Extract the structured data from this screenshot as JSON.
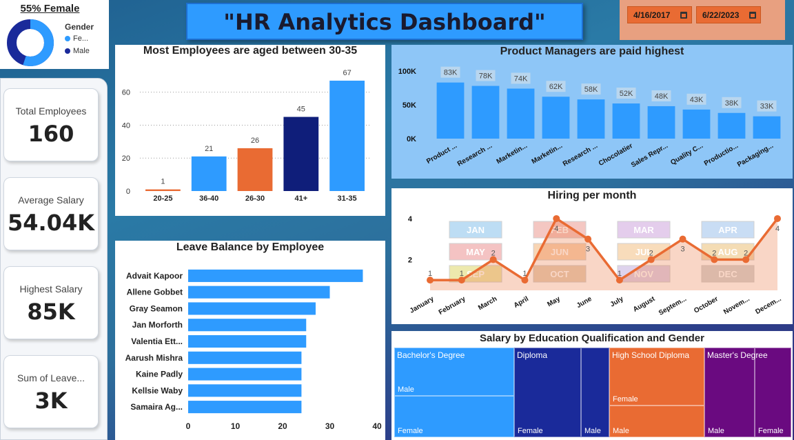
{
  "header": {
    "title": "\"HR Analytics Dashboard\""
  },
  "date_filter": {
    "start": "4/16/2017",
    "end": "6/22/2023"
  },
  "gender_card": {
    "title": "55% Female",
    "legend_title": "Gender",
    "female_label": "Fe...",
    "male_label": "Male",
    "female_share": 0.55,
    "female_color": "#2e9bff",
    "male_color": "#1a2a9a"
  },
  "kpis": [
    {
      "label": "Total Employees",
      "value": "160"
    },
    {
      "label": "Average Salary",
      "value": "54.04K"
    },
    {
      "label": "Highest Salary",
      "value": "85K"
    },
    {
      "label": "Sum of Leave...",
      "value": "3K"
    }
  ],
  "chart_data": [
    {
      "id": "age",
      "type": "bar",
      "title": "Most Employees are aged between 30-35",
      "categories": [
        "20-25",
        "36-40",
        "26-30",
        "41+",
        "31-35"
      ],
      "values": [
        1,
        21,
        26,
        45,
        67
      ],
      "colors": [
        "#e96b33",
        "#2e9bff",
        "#e96b33",
        "#0f1e7a",
        "#2e9bff"
      ],
      "ylim": [
        0,
        72
      ],
      "yticks": [
        0,
        20,
        40,
        60
      ],
      "grid": true
    },
    {
      "id": "salary_job",
      "type": "bar",
      "title": "Product Managers are paid highest",
      "categories": [
        "Product ...",
        "Research ...",
        "Marketin...",
        "Marketin...",
        "Research ...",
        "Chocolatier",
        "Sales Repr...",
        "Quality C...",
        "Productio...",
        "Packaging..."
      ],
      "values": [
        83,
        78,
        74,
        62,
        58,
        52,
        48,
        43,
        38,
        33
      ],
      "data_labels": [
        "83K",
        "78K",
        "74K",
        "62K",
        "58K",
        "52K",
        "48K",
        "43K",
        "38K",
        "33K"
      ],
      "ylim": [
        0,
        100
      ],
      "yticks": [
        0,
        50,
        100
      ],
      "ytick_labels": [
        "0K",
        "50K",
        "100K"
      ],
      "color": "#2e9bff"
    },
    {
      "id": "leave",
      "type": "bar",
      "orientation": "horizontal",
      "title": "Leave Balance by Employee",
      "categories": [
        "Advait Kapoor",
        "Allene Gobbet",
        "Gray Seamon",
        "Jan Morforth",
        "Valentia Ett...",
        "Aarush Mishra",
        "Kaine Padly",
        "Kellsie Waby",
        "Samaira Ag..."
      ],
      "values": [
        37,
        30,
        27,
        25,
        25,
        24,
        24,
        24,
        24
      ],
      "xlim": [
        0,
        40
      ],
      "xticks": [
        0,
        10,
        20,
        30,
        40
      ],
      "color": "#2e9bff"
    },
    {
      "id": "hiring",
      "type": "line",
      "title": "Hiring per month",
      "categories": [
        "January",
        "February",
        "March",
        "April",
        "May",
        "June",
        "July",
        "August",
        "Septem...",
        "October",
        "Novem...",
        "Decem..."
      ],
      "values": [
        1,
        1,
        2,
        1,
        4,
        3,
        1,
        2,
        3,
        2,
        2,
        4
      ],
      "ylim": [
        0.5,
        4.2
      ],
      "yticks": [
        2,
        4
      ],
      "color": "#e96b33",
      "month_badges": [
        "JAN",
        "FEB",
        "MAR",
        "APR",
        "MAY",
        "JUN",
        "JUL",
        "AUG",
        "SEP",
        "OCT",
        "NOV",
        "DEC"
      ]
    },
    {
      "id": "education",
      "type": "treemap",
      "title": "Salary by Education Qualification and Gender",
      "groups": [
        {
          "name": "Bachelor's Degree",
          "color": "#2e9bff",
          "children": [
            "Male",
            "Female"
          ]
        },
        {
          "name": "Diploma",
          "color": "#1a2a9a",
          "children": [
            "Female",
            "Male"
          ]
        },
        {
          "name": "High School Diploma",
          "color": "#e96b33",
          "children": [
            "Female",
            "Male"
          ]
        },
        {
          "name": "Master's Degree",
          "color": "#6a0a80",
          "children": [
            "Male",
            "Female"
          ]
        }
      ]
    }
  ]
}
